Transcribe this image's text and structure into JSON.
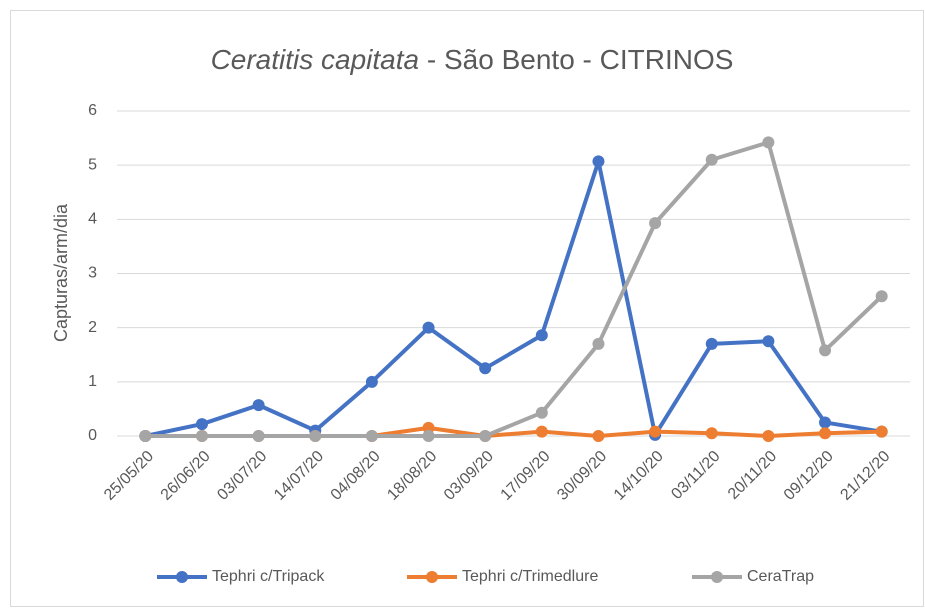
{
  "chart_data": {
    "type": "line",
    "title": [
      "Ceratitis capitata",
      " - São Bento - CITRINOS"
    ],
    "y_label": "Capturas/arm/dia",
    "categories": [
      "25/05/20",
      "26/06/20",
      "03/07/20",
      "14/07/20",
      "04/08/20",
      "18/08/20",
      "03/09/20",
      "17/09/20",
      "30/09/20",
      "14/10/20",
      "03/11/20",
      "20/11/20",
      "09/12/20",
      "21/12/20"
    ],
    "series": [
      {
        "name": "Tephri c/Tripack",
        "color": "#4472c4",
        "values": [
          0,
          0.22,
          0.57,
          0.1,
          1.0,
          2.0,
          1.25,
          1.86,
          5.07,
          0.02,
          1.7,
          1.75,
          0.25,
          0.08
        ]
      },
      {
        "name": "Tephri c/Trimedlure",
        "color": "#ed7d31",
        "values": [
          0,
          0,
          0,
          0,
          0,
          0.15,
          0,
          0.08,
          0,
          0.08,
          0.05,
          0,
          0.05,
          0.08
        ]
      },
      {
        "name": "CeraTrap",
        "color": "#a5a5a5",
        "values": [
          0,
          0,
          0,
          0,
          0,
          0,
          0,
          0.43,
          1.7,
          3.93,
          5.1,
          5.42,
          1.58,
          2.58
        ]
      }
    ],
    "ylim": [
      0,
      6
    ],
    "yticks": [
      0,
      1,
      2,
      3,
      4,
      5,
      6
    ],
    "grid": true,
    "legend": "bottom"
  }
}
